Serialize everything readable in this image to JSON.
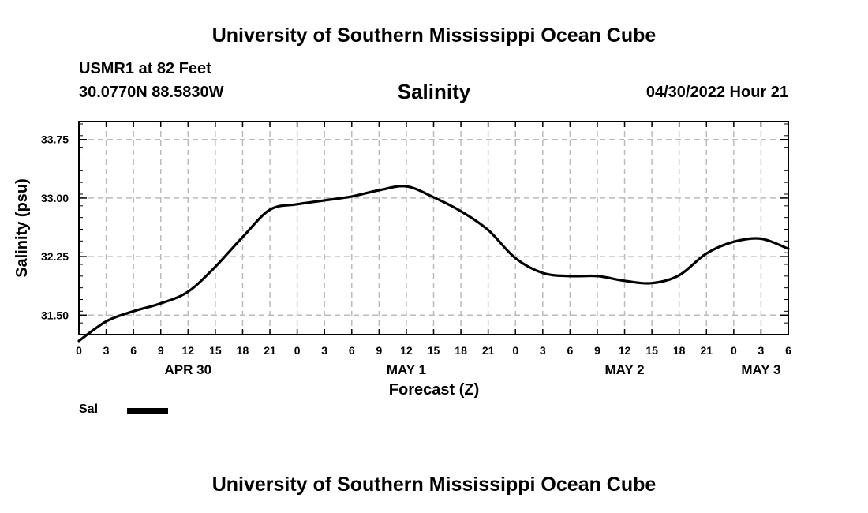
{
  "header": {
    "title": "University of Southern Mississippi Ocean Cube",
    "station": "USMR1 at 82 Feet",
    "coordinates": "30.0770N  88.5830W",
    "variable": "Salinity",
    "timestamp": "04/30/2022 Hour 21"
  },
  "footer": {
    "title": "University of Southern Mississippi Ocean Cube"
  },
  "legend": {
    "label": "Sal",
    "color": "#000000"
  },
  "chart_data": {
    "type": "line",
    "title": "Salinity",
    "xlabel": "Forecast (Z)",
    "ylabel": "Salinity (psu)",
    "x_unit": "forecast hours from APR 30 00Z",
    "xlim": [
      0,
      78
    ],
    "ylim": [
      31.25,
      33.98
    ],
    "grid": true,
    "x_ticks": [
      0,
      3,
      6,
      9,
      12,
      15,
      18,
      21,
      24,
      27,
      30,
      33,
      36,
      39,
      42,
      45,
      48,
      51,
      54,
      57,
      60,
      63,
      66,
      69,
      72,
      75,
      78
    ],
    "x_tick_labels": [
      "0",
      "3",
      "6",
      "9",
      "12",
      "15",
      "18",
      "21",
      "0",
      "3",
      "6",
      "9",
      "12",
      "15",
      "18",
      "21",
      "0",
      "3",
      "6",
      "9",
      "12",
      "15",
      "18",
      "21",
      "0",
      "3",
      "6"
    ],
    "date_labels": [
      {
        "text": "APR 30",
        "x": 12
      },
      {
        "text": "MAY 1",
        "x": 36
      },
      {
        "text": "MAY 2",
        "x": 60
      },
      {
        "text": "MAY 3",
        "x": 75
      }
    ],
    "y_ticks": [
      31.5,
      32.25,
      33.0,
      33.75
    ],
    "y_tick_labels": [
      "31.50",
      "32.25",
      "33.00",
      "33.75"
    ],
    "series": [
      {
        "name": "Sal",
        "x": [
          0,
          3,
          6,
          9,
          12,
          15,
          18,
          21,
          24,
          27,
          30,
          33,
          36,
          39,
          42,
          45,
          48,
          51,
          54,
          57,
          60,
          63,
          66,
          69,
          72,
          75,
          78
        ],
        "values": [
          31.17,
          31.42,
          31.55,
          31.65,
          31.8,
          32.12,
          32.5,
          32.85,
          32.92,
          32.97,
          33.02,
          33.1,
          33.15,
          33.01,
          32.83,
          32.59,
          32.23,
          32.04,
          32.0,
          32.0,
          31.94,
          31.91,
          32.01,
          32.29,
          32.44,
          32.48,
          32.35
        ]
      }
    ]
  }
}
